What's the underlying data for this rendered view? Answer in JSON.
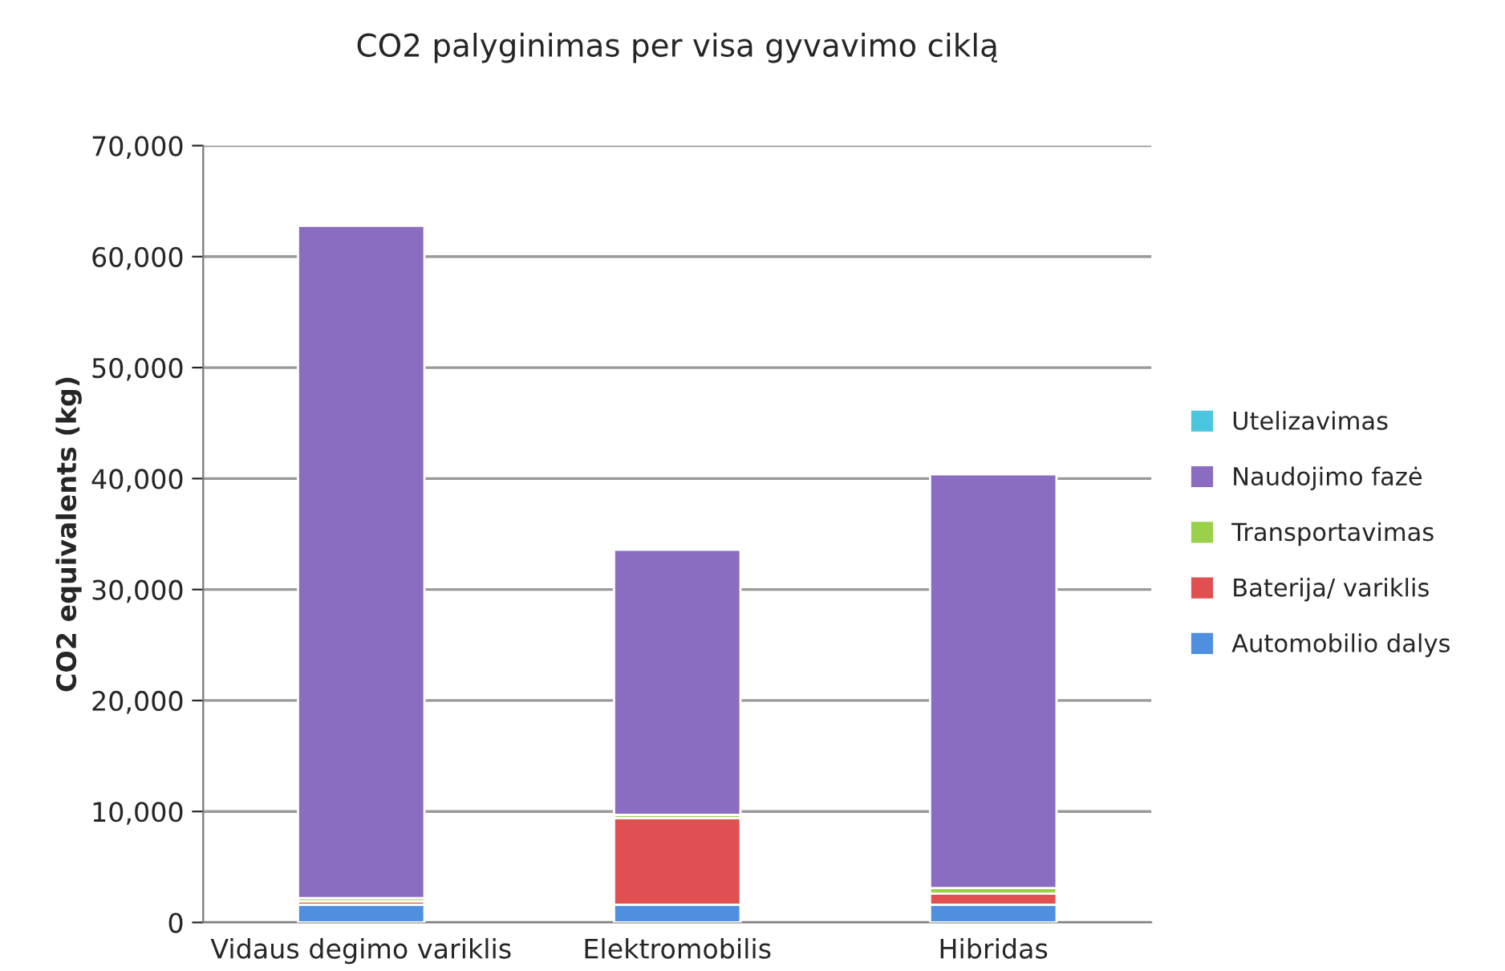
{
  "chart_data": {
    "type": "bar",
    "title": "CO2 palyginimas per visa gyvavimo ciklą",
    "ylabel": "CO2 equivalents (kg)",
    "categories": [
      "Vidaus degimo variklis",
      "Elektromobilis",
      "Hibridas"
    ],
    "stacked": true,
    "series": [
      {
        "name": "Automobilio dalys",
        "color": "#4f8fe0",
        "values": [
          1600,
          1600,
          1600
        ]
      },
      {
        "name": "Baterija/ variklis",
        "color": "#e05050",
        "values": [
          300,
          7800,
          1000
        ]
      },
      {
        "name": "Transportavimas",
        "color": "#9bd04a",
        "values": [
          300,
          300,
          500
        ]
      },
      {
        "name": "Naudojimo fazė",
        "color": "#8a6cc0",
        "values": [
          60600,
          23900,
          37300
        ]
      },
      {
        "name": "Utelizavimas",
        "color": "#4bc6df",
        "values": [
          null,
          null,
          null
        ]
      }
    ],
    "ylim": [
      0,
      70000
    ],
    "yticks": [
      {
        "value": 0,
        "label": "0"
      },
      {
        "value": 10000,
        "label": "10,000"
      },
      {
        "value": 20000,
        "label": "20,000"
      },
      {
        "value": 30000,
        "label": "30,000"
      },
      {
        "value": 40000,
        "label": "40,000"
      },
      {
        "value": 50000,
        "label": "50,000"
      },
      {
        "value": 60000,
        "label": "60,000"
      },
      {
        "value": 70000,
        "label": "70,000"
      }
    ],
    "grid": "y",
    "legend": "right"
  }
}
